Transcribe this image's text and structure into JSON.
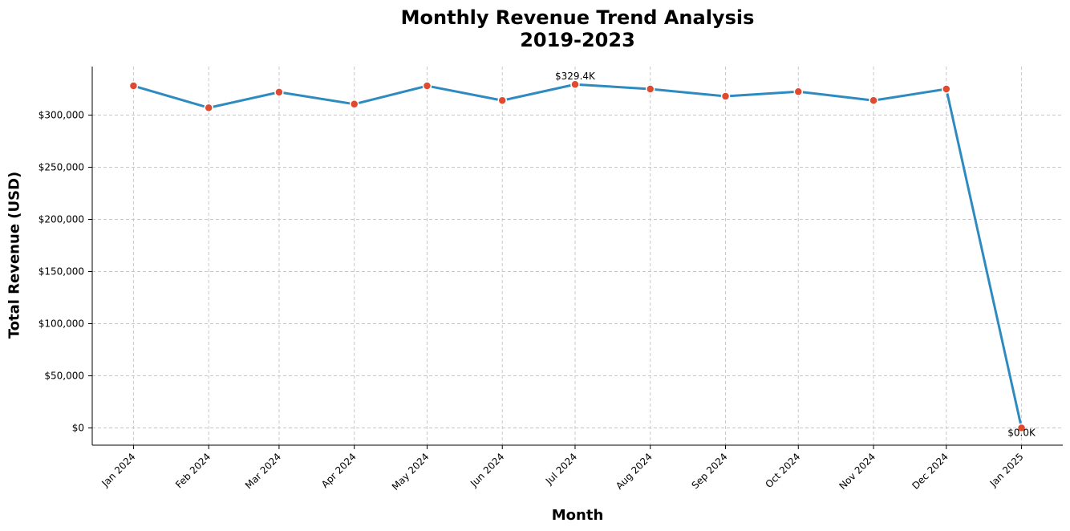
{
  "chart_data": {
    "type": "line",
    "title": "Monthly Revenue Trend Analysis",
    "subtitle": "2019-2023",
    "xlabel": "Month",
    "ylabel": "Total Revenue (USD)",
    "categories": [
      "Jan 2024",
      "Feb 2024",
      "Mar 2024",
      "Apr 2024",
      "May 2024",
      "Jun 2024",
      "Jul 2024",
      "Aug 2024",
      "Sep 2024",
      "Oct 2024",
      "Nov 2024",
      "Dec 2024",
      "Jan 2025"
    ],
    "x_positions_days": [
      0,
      31,
      60,
      91,
      121,
      152,
      182,
      213,
      244,
      274,
      305,
      335,
      366
    ],
    "values": [
      328000,
      307000,
      322000,
      310500,
      328000,
      314000,
      329400,
      325000,
      318000,
      322500,
      314000,
      325000,
      0
    ],
    "ylim": [
      -16500,
      346500
    ],
    "yticks": [
      0,
      50000,
      100000,
      150000,
      200000,
      250000,
      300000
    ],
    "ytick_labels": [
      "$0",
      "$50,000",
      "$100,000",
      "$150,000",
      "$200,000",
      "$250,000",
      "$300,000"
    ],
    "annotations": [
      {
        "index": 6,
        "text": "$329.4K"
      },
      {
        "index": 12,
        "text": "$0.0K"
      }
    ],
    "grid": true,
    "colors": {
      "line": "#2e8bc0",
      "marker": "#e04a2e",
      "marker_edge": "#ffffff",
      "grid": "#c8c8c8"
    }
  }
}
